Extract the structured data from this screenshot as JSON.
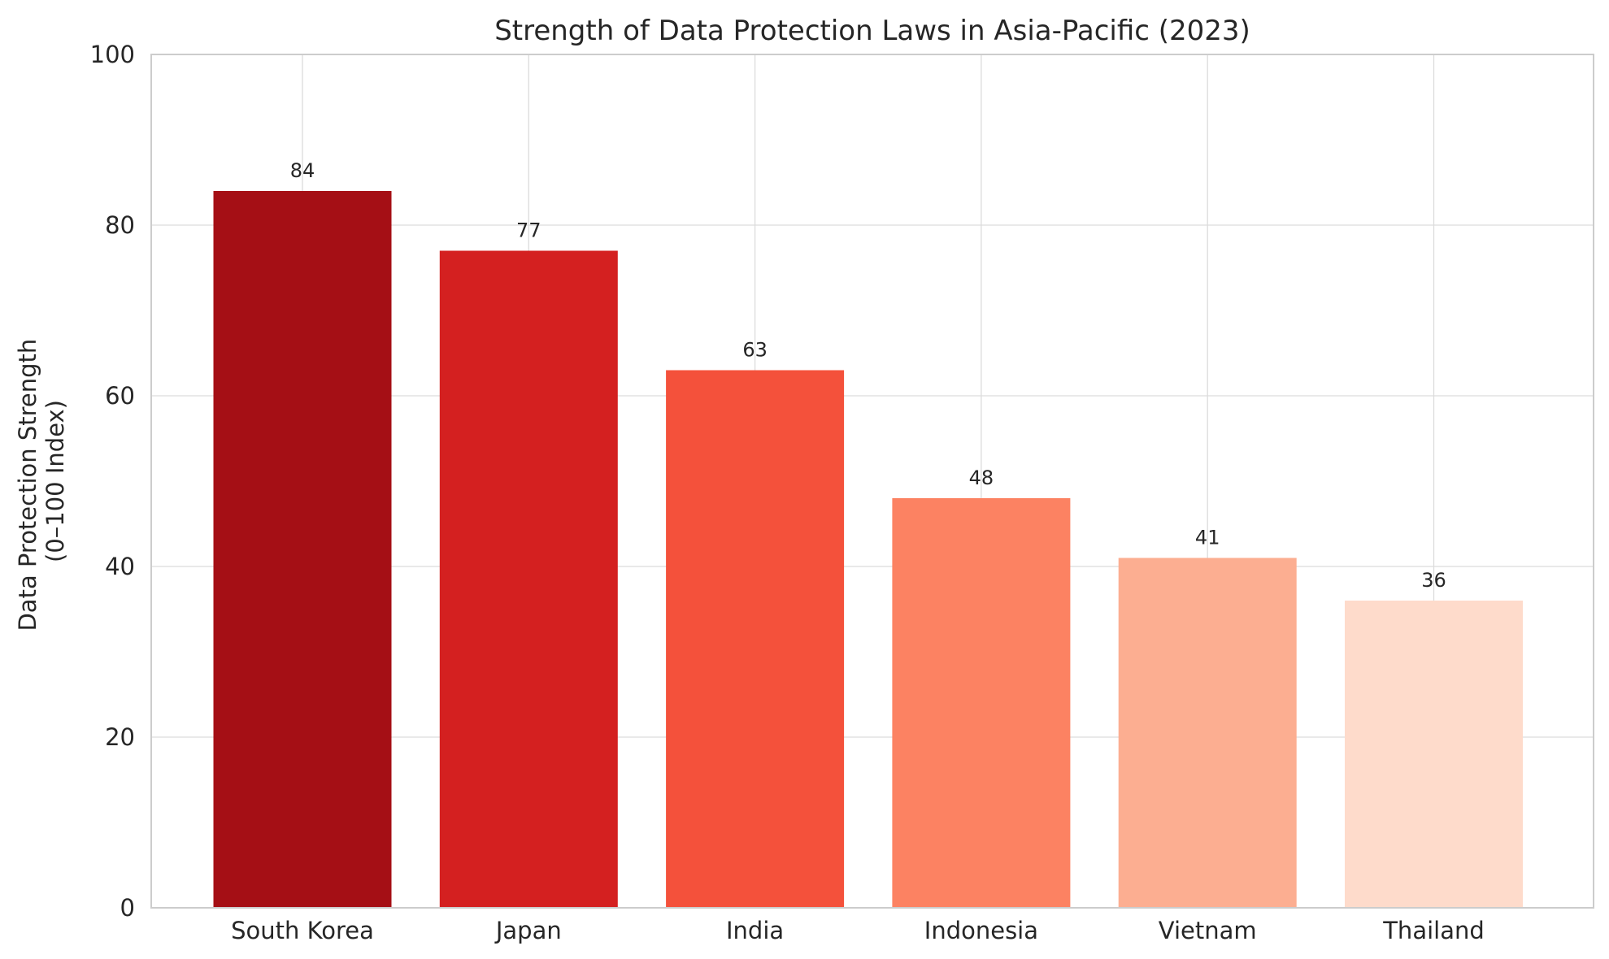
{
  "chart_data": {
    "type": "bar",
    "title": "Strength of Data Protection Laws in Asia-Pacific (2023)",
    "xlabel": "",
    "ylabel": [
      "Data Protection Strength",
      "(0–100 Index)"
    ],
    "categories": [
      "South Korea",
      "Japan",
      "India",
      "Indonesia",
      "Vietnam",
      "Thailand"
    ],
    "values": [
      84,
      77,
      63,
      48,
      41,
      36
    ],
    "data_labels": [
      "84",
      "77",
      "63",
      "48",
      "41",
      "36"
    ],
    "colors": [
      "#a50f15",
      "#d42020",
      "#f4513b",
      "#fc8262",
      "#fcae91",
      "#fedbcb"
    ],
    "ylim": [
      0,
      100
    ],
    "yticks": [
      0,
      20,
      40,
      60,
      80,
      100
    ],
    "ytick_labels": [
      "0",
      "20",
      "40",
      "60",
      "80",
      "100"
    ],
    "grid": true,
    "legend": "none"
  }
}
